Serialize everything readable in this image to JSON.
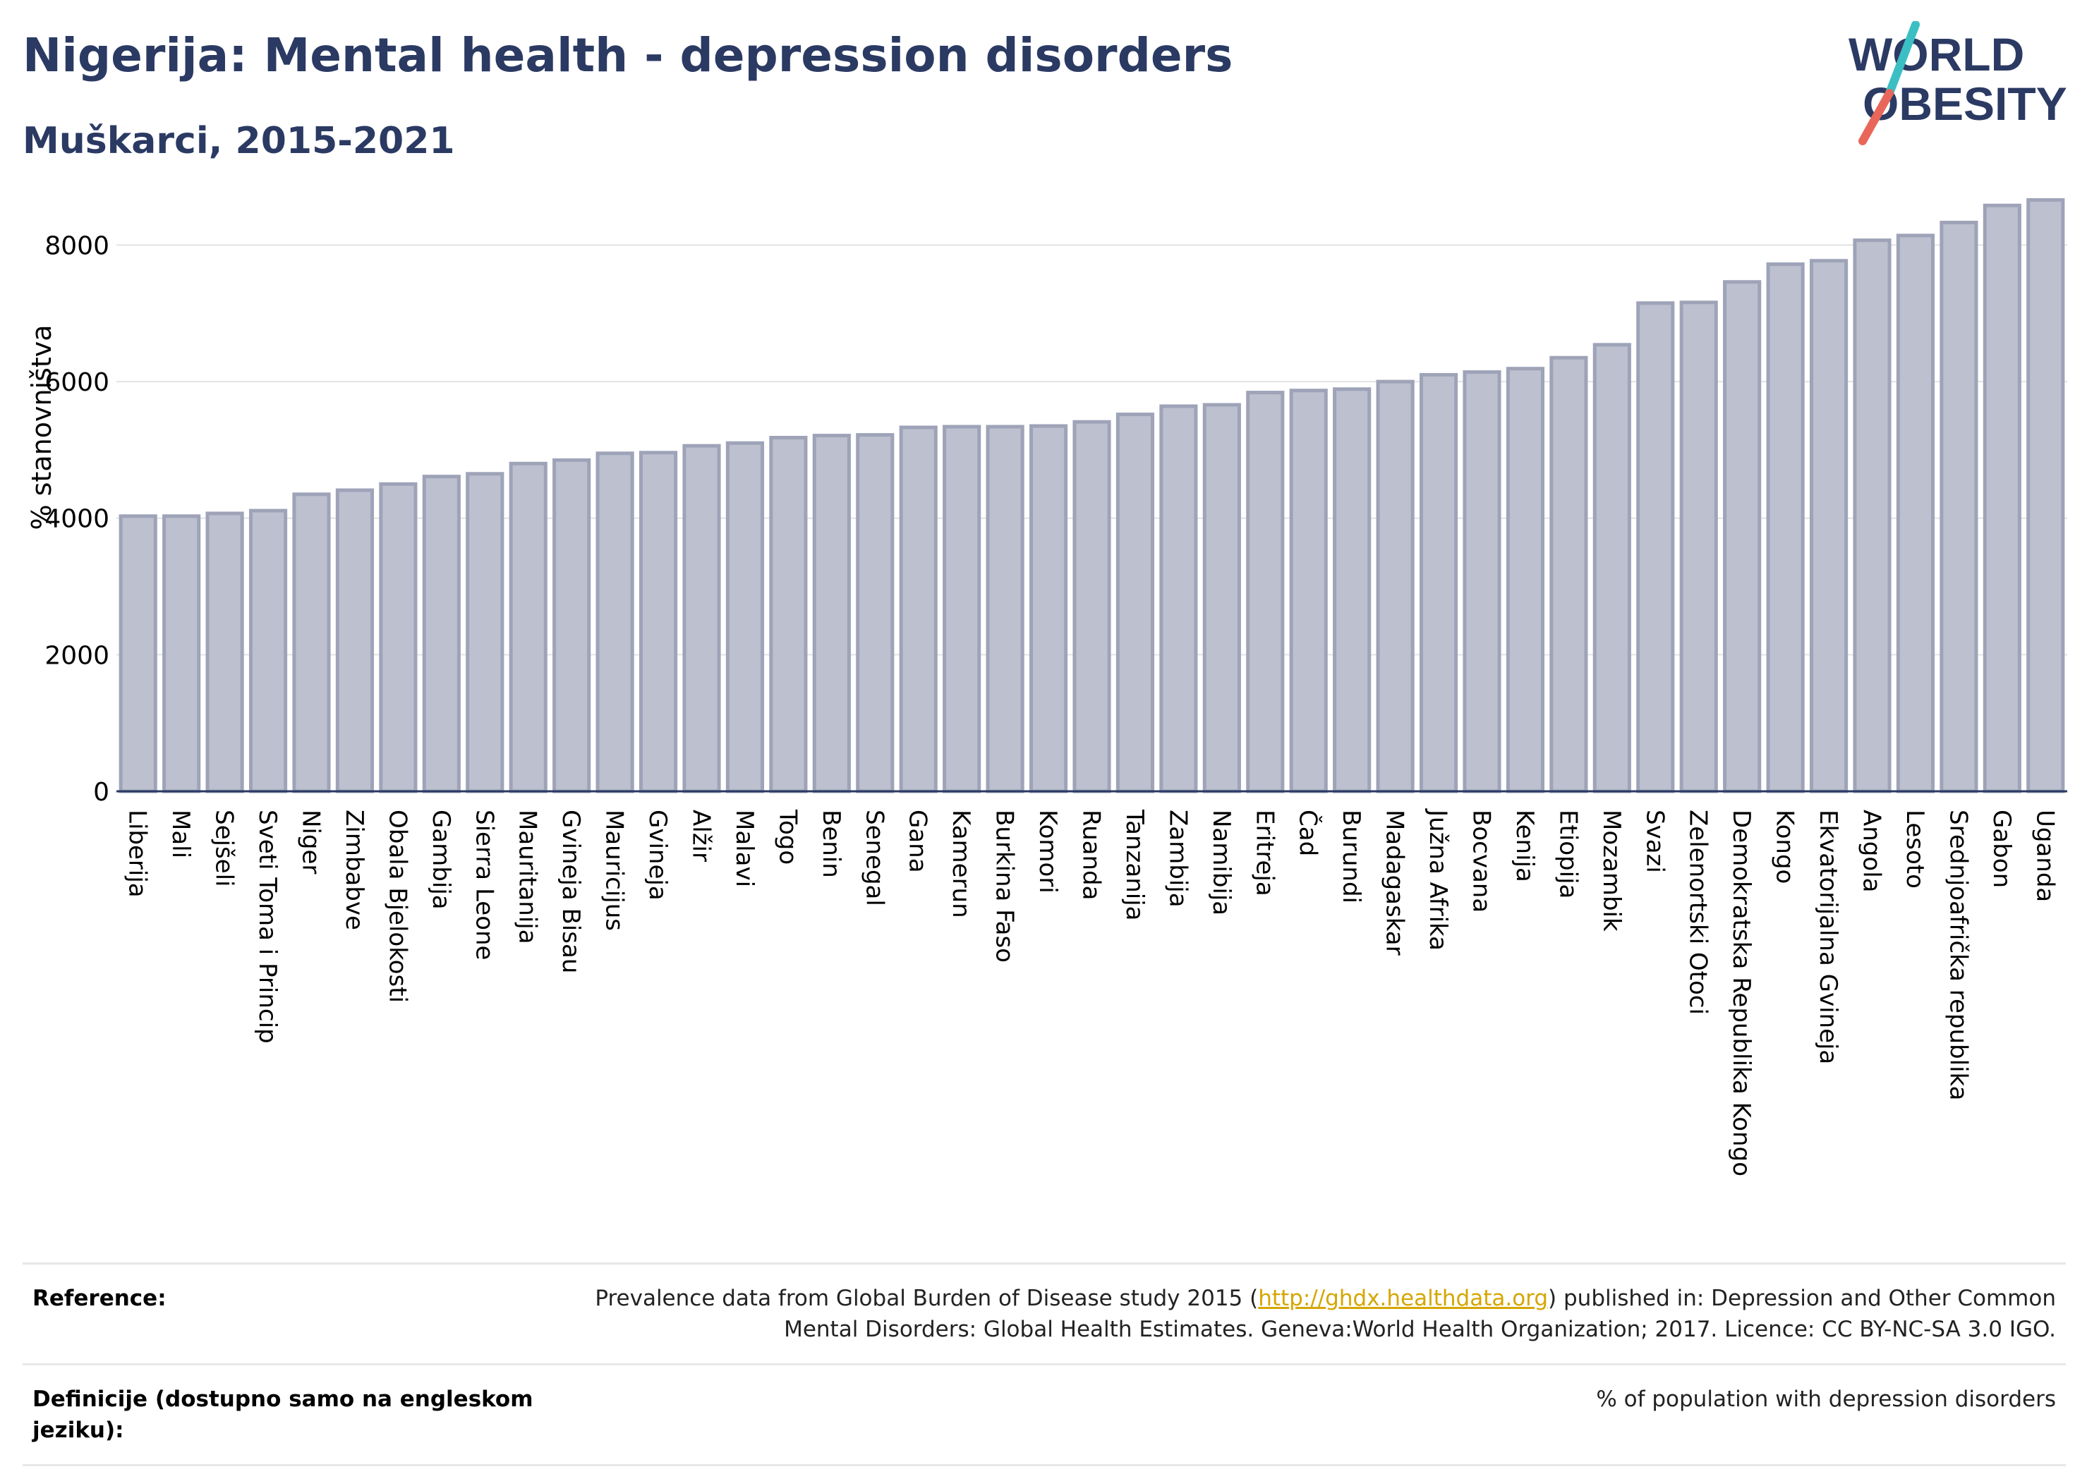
{
  "header": {
    "title": "Nigerija: Mental health - depression disorders",
    "subtitle": "Muškarci, 2015-2021"
  },
  "logo": {
    "line1": "WORLD",
    "line2": "OBESITY",
    "colors": {
      "text": "#2b3a63",
      "slash_teal": "#3bbfc4",
      "slash_coral": "#e8675a"
    }
  },
  "colors": {
    "bar_fill": "#bcc0cf",
    "bar_stroke": "#9ea3b8",
    "grid": "#e3e3e3",
    "axis": "#2b3a63",
    "title": "#2b3a63"
  },
  "chart_data": {
    "type": "bar",
    "ylabel": "% stanovništva",
    "xlabel": "",
    "ylim": [
      0,
      8800
    ],
    "yticks": [
      0,
      2000,
      4000,
      6000,
      8000
    ],
    "grid": true,
    "categories": [
      "Liberija",
      "Mali",
      "Sejšeli",
      "Sveti Toma i Princip",
      "Niger",
      "Zimbabve",
      "Obala Bjelokosti",
      "Gambija",
      "Sierra Leone",
      "Mauritanija",
      "Gvineja Bisau",
      "Mauricijus",
      "Gvineja",
      "Alžir",
      "Malavi",
      "Togo",
      "Benin",
      "Senegal",
      "Gana",
      "Kamerun",
      "Burkina Faso",
      "Komori",
      "Ruanda",
      "Tanzanija",
      "Zambija",
      "Namibija",
      "Eritreja",
      "Čad",
      "Burundi",
      "Madagaskar",
      "Južna Afrika",
      "Bocvana",
      "Kenija",
      "Etiopija",
      "Mozambik",
      "Svazi",
      "Zelenortski Otoci",
      "Demokratska Republika Kongo",
      "Kongo",
      "Ekvatorijalna Gvineja",
      "Angola",
      "Lesoto",
      "Srednjoafrička republika",
      "Gabon",
      "Uganda"
    ],
    "values": [
      4030,
      4030,
      4070,
      4110,
      4350,
      4410,
      4500,
      4610,
      4650,
      4800,
      4850,
      4950,
      4960,
      5060,
      5100,
      5180,
      5210,
      5220,
      5330,
      5340,
      5340,
      5350,
      5410,
      5520,
      5640,
      5660,
      5840,
      5870,
      5890,
      6000,
      6100,
      6140,
      6190,
      6350,
      6540,
      7150,
      7160,
      7460,
      7720,
      7770,
      8070,
      8140,
      8330,
      8580,
      8660
    ]
  },
  "references": [
    {
      "label": "Reference:",
      "text_before": "Prevalence data from Global Burden of Disease study 2015 (",
      "link": "http://ghdx.healthdata.org",
      "text_after": ") published in: Depression and Other Common Mental Disorders: Global Health Estimates. Geneva:World Health Organization; 2017. Licence: CC BY-NC-SA 3.0 IGO."
    },
    {
      "label": "Definicije (dostupno samo na engleskom jeziku):",
      "text": "% of population with depression disorders"
    }
  ]
}
